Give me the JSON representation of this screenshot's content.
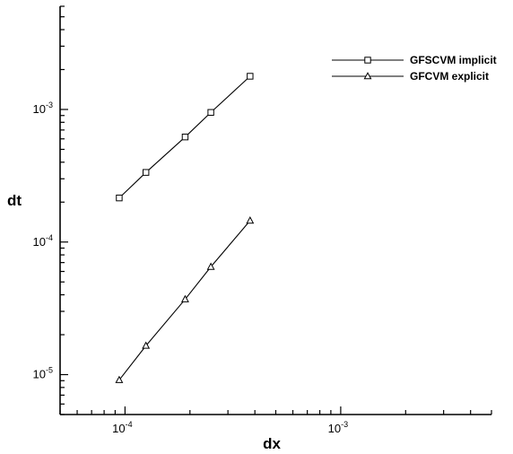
{
  "chart_data": {
    "type": "line",
    "xlabel": "dx",
    "ylabel": "dt",
    "x_scale": "log",
    "y_scale": "log",
    "xlim": [
      5e-05,
      0.005
    ],
    "ylim": [
      5e-06,
      0.006
    ],
    "x_tick_labels": [
      {
        "value": 0.0001,
        "base": "10",
        "exp": "-4"
      },
      {
        "value": 0.001,
        "base": "10",
        "exp": "-3"
      }
    ],
    "y_tick_labels": [
      {
        "value": 1e-05,
        "base": "10",
        "exp": "-5"
      },
      {
        "value": 0.0001,
        "base": "10",
        "exp": "-4"
      },
      {
        "value": 0.001,
        "base": "10",
        "exp": "-3"
      }
    ],
    "grid": false,
    "legend_position": "top-right",
    "series": [
      {
        "name": "GFSCVM implicit",
        "marker": "square",
        "x": [
          9.4e-05,
          0.000125,
          0.00019,
          0.00025,
          0.00038
        ],
        "y": [
          0.000215,
          0.000335,
          0.00062,
          0.00095,
          0.00178
        ]
      },
      {
        "name": "GFCVM explicit",
        "marker": "triangle",
        "x": [
          9.4e-05,
          0.000125,
          0.00019,
          0.00025,
          0.00038
        ],
        "y": [
          9.1e-06,
          1.65e-05,
          3.7e-05,
          6.5e-05,
          0.000145
        ]
      }
    ]
  }
}
